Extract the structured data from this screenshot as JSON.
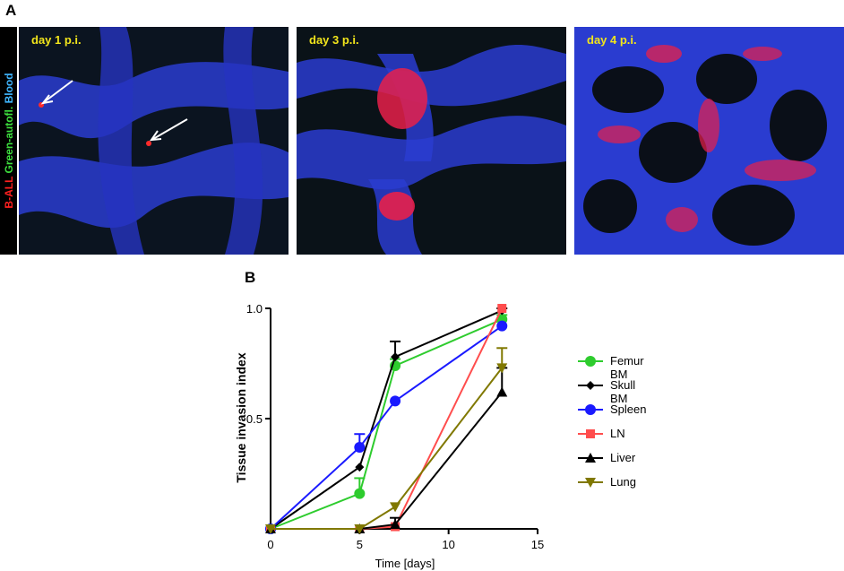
{
  "panels": {
    "a_letter": "A",
    "b_letter": "B"
  },
  "side_label": {
    "parts": [
      {
        "text": "B-ALL",
        "color": "#ff2020"
      },
      {
        "text": " Green-autofl.",
        "color": "#3ee03e"
      },
      {
        "text": " Blood",
        "color": "#3fb6ff"
      }
    ]
  },
  "micrographs": [
    {
      "label": "day 1 p.i."
    },
    {
      "label": "day 3 p.i."
    },
    {
      "label": "day 4 p.i."
    }
  ],
  "chart_data": {
    "type": "line",
    "xlabel": "Time [days]",
    "ylabel": "Tissue invasion index",
    "xlim": [
      0,
      15
    ],
    "ylim": [
      0,
      1.0
    ],
    "xticks": [
      0,
      5,
      10,
      15
    ],
    "yticks": [
      0,
      0.5,
      1.0
    ],
    "ytick_labels": [
      "",
      "0.5",
      "1.0"
    ],
    "xtick_labels": [
      "0",
      "5",
      "10",
      "15"
    ],
    "legend_position": "right",
    "series": [
      {
        "name": "Femur BM",
        "color": "#2ecc2e",
        "marker": "circle",
        "x": [
          0,
          5,
          7,
          13
        ],
        "y": [
          0.0,
          0.16,
          0.74,
          0.95
        ],
        "err": [
          0,
          0.07,
          0.03,
          0.02
        ]
      },
      {
        "name": "Skull BM",
        "color": "#000000",
        "marker": "diamond",
        "x": [
          0,
          5,
          7,
          13
        ],
        "y": [
          0.0,
          0.28,
          0.78,
          0.99
        ],
        "err": [
          0,
          0,
          0.07,
          0.01
        ]
      },
      {
        "name": "Spleen",
        "color": "#1a1aff",
        "marker": "circle",
        "x": [
          0,
          5,
          7,
          13
        ],
        "y": [
          0.0,
          0.37,
          0.58,
          0.92
        ],
        "err": [
          0,
          0.06,
          0,
          0
        ]
      },
      {
        "name": "LN",
        "color": "#ff4d4d",
        "marker": "square",
        "x": [
          0,
          5,
          7,
          13
        ],
        "y": [
          0.0,
          0.0,
          0.01,
          1.0
        ],
        "err": [
          0,
          0,
          0,
          0
        ]
      },
      {
        "name": "Liver",
        "color": "#000000",
        "marker": "triangle-up",
        "x": [
          0,
          5,
          7,
          13
        ],
        "y": [
          0.0,
          0.0,
          0.02,
          0.62
        ],
        "err": [
          0,
          0,
          0.03,
          0.11
        ]
      },
      {
        "name": "Lung",
        "color": "#807800",
        "marker": "triangle-down",
        "x": [
          0,
          5,
          7,
          13
        ],
        "y": [
          0.0,
          0.0,
          0.1,
          0.73
        ],
        "err": [
          0,
          0,
          0,
          0.09
        ]
      }
    ]
  }
}
